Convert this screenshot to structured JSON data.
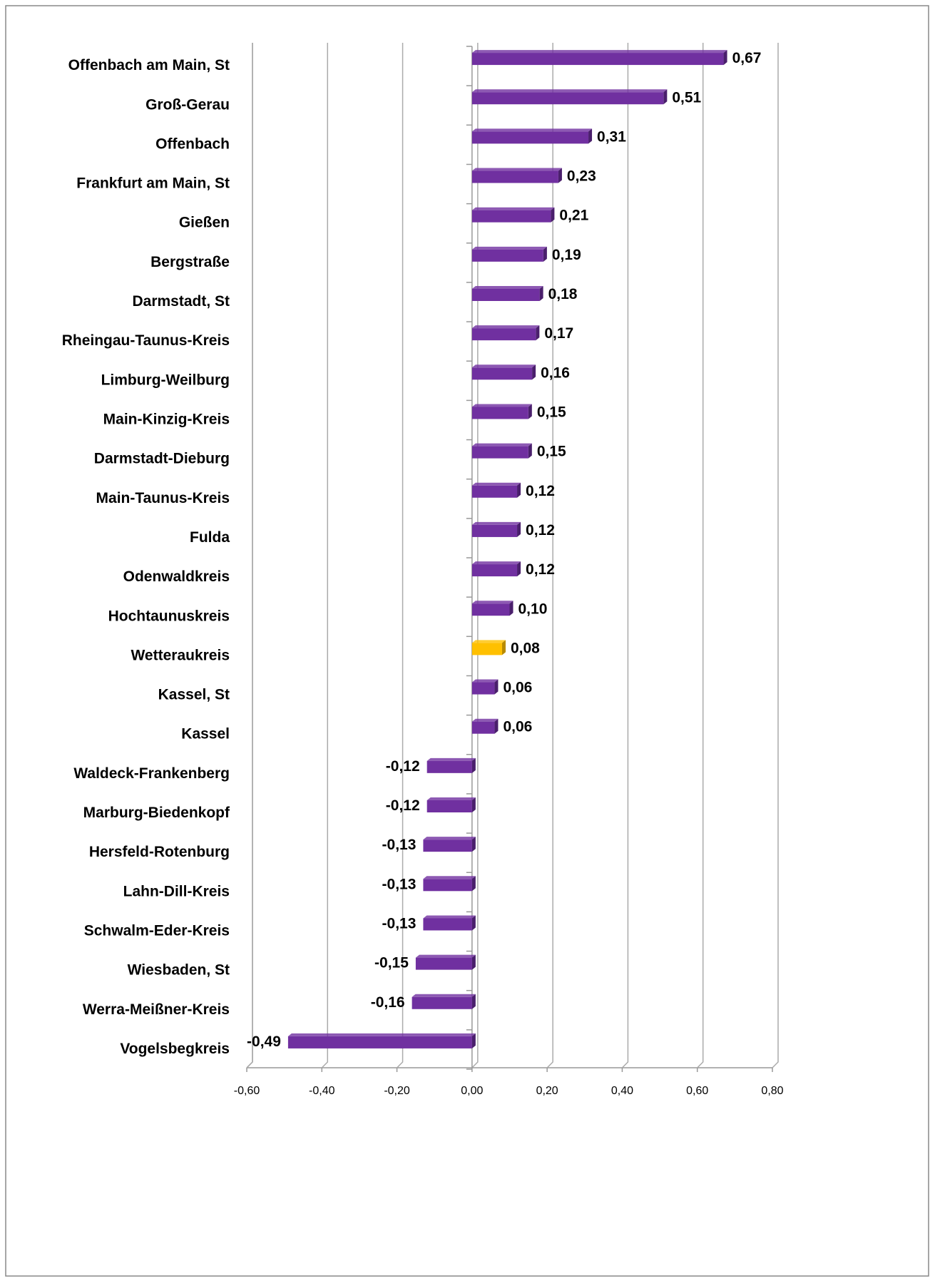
{
  "chart_data": {
    "type": "barh",
    "categories": [
      "Offenbach am Main, St",
      "Groß-Gerau",
      "Offenbach",
      "Frankfurt am Main, St",
      "Gießen",
      "Bergstraße",
      "Darmstadt, St",
      "Rheingau-Taunus-Kreis",
      "Limburg-Weilburg",
      "Main-Kinzig-Kreis",
      "Darmstadt-Dieburg",
      "Main-Taunus-Kreis",
      "Fulda",
      "Odenwaldkreis",
      "Hochtaunuskreis",
      "Wetteraukreis",
      "Kassel, St",
      "Kassel",
      "Waldeck-Frankenberg",
      "Marburg-Biedenkopf",
      "Hersfeld-Rotenburg",
      "Lahn-Dill-Kreis",
      "Schwalm-Eder-Kreis",
      "Wiesbaden, St",
      "Werra-Meißner-Kreis",
      "Vogelsbegkreis"
    ],
    "values": [
      0.67,
      0.51,
      0.31,
      0.23,
      0.21,
      0.19,
      0.18,
      0.17,
      0.16,
      0.15,
      0.15,
      0.12,
      0.12,
      0.12,
      0.1,
      0.08,
      0.06,
      0.06,
      -0.12,
      -0.12,
      -0.13,
      -0.13,
      -0.13,
      -0.15,
      -0.16,
      -0.49
    ],
    "value_labels": [
      "0,67",
      "0,51",
      "0,31",
      "0,23",
      "0,21",
      "0,19",
      "0,18",
      "0,17",
      "0,16",
      "0,15",
      "0,15",
      "0,12",
      "0,12",
      "0,12",
      "0,10",
      "0,08",
      "0,06",
      "0,06",
      "-0,12",
      "-0,12",
      "-0,13",
      "-0,13",
      "-0,13",
      "-0,15",
      "-0,16",
      "-0,49"
    ],
    "colors": [
      "#7030a0",
      "#7030a0",
      "#7030a0",
      "#7030a0",
      "#7030a0",
      "#7030a0",
      "#7030a0",
      "#7030a0",
      "#7030a0",
      "#7030a0",
      "#7030a0",
      "#7030a0",
      "#7030a0",
      "#7030a0",
      "#7030a0",
      "#ffc000",
      "#7030a0",
      "#7030a0",
      "#7030a0",
      "#7030a0",
      "#7030a0",
      "#7030a0",
      "#7030a0",
      "#7030a0",
      "#7030a0",
      "#7030a0"
    ],
    "xlim": [
      -0.6,
      0.8
    ],
    "xticks": [
      {
        "value": -0.6,
        "label": "-0,60"
      },
      {
        "value": -0.4,
        "label": "-0,40"
      },
      {
        "value": -0.2,
        "label": "-0,20"
      },
      {
        "value": 0,
        "label": "0,00"
      },
      {
        "value": 0.2,
        "label": "0,20"
      },
      {
        "value": 0.4,
        "label": "0,40"
      },
      {
        "value": 0.6,
        "label": "0,60"
      },
      {
        "value": 0.8,
        "label": "0,80"
      }
    ],
    "grid": true
  }
}
